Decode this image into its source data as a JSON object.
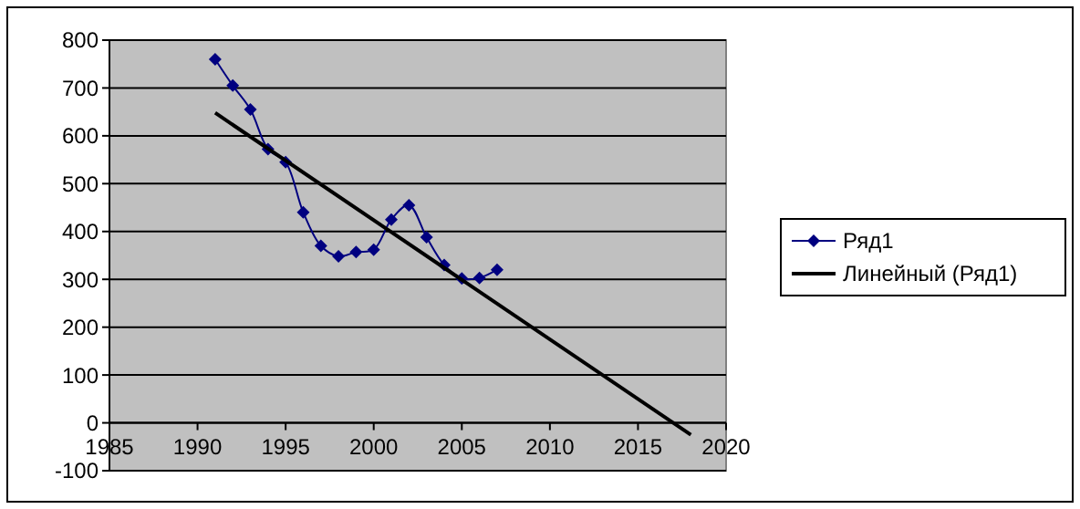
{
  "chart_data": {
    "type": "line",
    "x": [
      1991,
      1992,
      1993,
      1994,
      1995,
      1996,
      1997,
      1998,
      1999,
      2000,
      2001,
      2002,
      2003,
      2004,
      2005,
      2006,
      2007
    ],
    "series": [
      {
        "name": "Ряд1",
        "color": "#000080",
        "marker": "diamond",
        "values": [
          760,
          705,
          655,
          572,
          545,
          440,
          370,
          348,
          357,
          362,
          425,
          455,
          388,
          330,
          302,
          303,
          320
        ]
      },
      {
        "name": "Линейный (Ряд1)",
        "color": "#000000",
        "marker": "none",
        "x": [
          1991,
          2018
        ],
        "values": [
          648,
          -25
        ]
      }
    ],
    "xlim": [
      1985,
      2020
    ],
    "xticks": [
      1985,
      1990,
      1995,
      2000,
      2005,
      2010,
      2015,
      2020
    ],
    "ylim": [
      -100,
      800
    ],
    "yticks": [
      -100,
      0,
      100,
      200,
      300,
      400,
      500,
      600,
      700,
      800
    ],
    "grid": "y",
    "legend": "right"
  }
}
